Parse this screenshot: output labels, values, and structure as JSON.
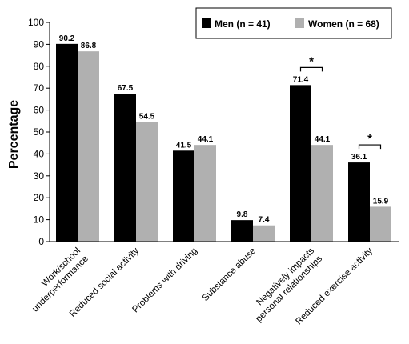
{
  "chart_data": {
    "type": "bar",
    "ylabel": "Percentage",
    "ylim": [
      0,
      100
    ],
    "yticks": [
      0,
      10,
      20,
      30,
      40,
      50,
      60,
      70,
      80,
      90,
      100
    ],
    "categories": [
      [
        "Work/school",
        "underperformance"
      ],
      [
        "Reduced social activity"
      ],
      [
        "Problems with driving"
      ],
      [
        "Substance abuse"
      ],
      [
        "Negatively impacts",
        "personal relationships"
      ],
      [
        "Reduced exercise activity"
      ]
    ],
    "series": [
      {
        "name": "Men (n = 41)",
        "color": "#000000",
        "values": [
          90.2,
          67.5,
          41.5,
          9.8,
          71.4,
          36.1
        ]
      },
      {
        "name": "Women (n = 68)",
        "color": "#b0b0b0",
        "values": [
          86.8,
          54.5,
          44.1,
          7.4,
          44.1,
          15.9
        ]
      }
    ],
    "significance": [
      {
        "category_index": 4,
        "label": "*"
      },
      {
        "category_index": 5,
        "label": "*"
      }
    ],
    "legend": {
      "placement": "top-right"
    }
  }
}
